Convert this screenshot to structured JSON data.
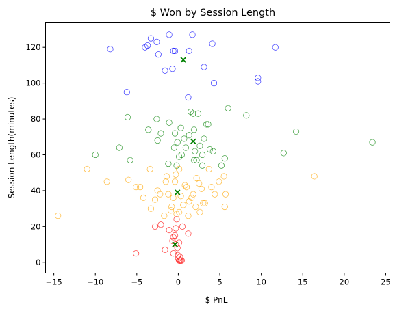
{
  "chart_data": {
    "type": "scatter",
    "title": "$ Won by Session Length",
    "xlabel": "$ PnL",
    "ylabel": "Session Length(minutes)",
    "xlim": [
      -16,
      25.5
    ],
    "ylim": [
      -6,
      134
    ],
    "xticks": [
      -15,
      -10,
      -5,
      0,
      5,
      10,
      15,
      20,
      25
    ],
    "yticks": [
      0,
      20,
      40,
      60,
      80,
      100,
      120
    ],
    "grid": false,
    "legend": "none",
    "series": [
      {
        "color": "#0000ff",
        "marker": "open-circle",
        "points": [
          [
            -8.2,
            119
          ],
          [
            -4,
            120
          ],
          [
            -3.7,
            121
          ],
          [
            -3.3,
            125
          ],
          [
            -2.6,
            123
          ],
          [
            -1.1,
            127
          ],
          [
            1.7,
            127
          ],
          [
            -2.4,
            116
          ],
          [
            -1.6,
            107
          ],
          [
            -0.7,
            108
          ],
          [
            -0.4,
            118
          ],
          [
            -0.6,
            118
          ],
          [
            1.3,
            118
          ],
          [
            3.1,
            109
          ],
          [
            4.1,
            122
          ],
          [
            4.3,
            100
          ],
          [
            1.2,
            92
          ],
          [
            -6.2,
            95
          ],
          [
            9.6,
            101
          ],
          [
            9.6,
            103
          ],
          [
            11.7,
            120
          ]
        ]
      },
      {
        "color": "#008000",
        "marker": "open-circle",
        "points": [
          [
            -10,
            60
          ],
          [
            -6.1,
            81
          ],
          [
            -5.8,
            57
          ],
          [
            -7.1,
            64
          ],
          [
            -3.6,
            74
          ],
          [
            -2.6,
            80
          ],
          [
            -2.5,
            68
          ],
          [
            -2.1,
            72
          ],
          [
            -1.1,
            78
          ],
          [
            -1.2,
            55
          ],
          [
            -0.5,
            64
          ],
          [
            -0.4,
            72
          ],
          [
            -0.1,
            67
          ],
          [
            -0.2,
            54
          ],
          [
            0.1,
            59
          ],
          [
            0.3,
            75
          ],
          [
            0.4,
            60
          ],
          [
            0.7,
            69
          ],
          [
            0.9,
            64
          ],
          [
            1.3,
            71
          ],
          [
            1.5,
            84
          ],
          [
            1.8,
            83
          ],
          [
            1.9,
            74
          ],
          [
            2.0,
            62
          ],
          [
            2.2,
            57
          ],
          [
            2.4,
            83
          ],
          [
            2.6,
            65
          ],
          [
            1.9,
            57
          ],
          [
            2.9,
            54
          ],
          [
            2.9,
            60
          ],
          [
            3.1,
            69
          ],
          [
            3.4,
            77
          ],
          [
            3.6,
            77
          ],
          [
            3.8,
            63
          ],
          [
            4.2,
            62
          ],
          [
            5.2,
            54
          ],
          [
            5.6,
            58
          ],
          [
            6.0,
            86
          ],
          [
            8.2,
            82
          ],
          [
            12.7,
            61
          ],
          [
            14.2,
            73
          ],
          [
            23.4,
            67
          ]
        ]
      },
      {
        "color": "#ffa500",
        "marker": "open-circle",
        "points": [
          [
            -14.5,
            26
          ],
          [
            -11,
            52
          ],
          [
            -8.6,
            45
          ],
          [
            -6,
            46
          ],
          [
            -5.1,
            42
          ],
          [
            -4.6,
            42
          ],
          [
            -4.2,
            36
          ],
          [
            -3.3,
            30
          ],
          [
            -3.4,
            52
          ],
          [
            -2.8,
            35
          ],
          [
            -2.5,
            40
          ],
          [
            -2.2,
            38
          ],
          [
            -1.7,
            26
          ],
          [
            -1.5,
            45
          ],
          [
            -1.4,
            48
          ],
          [
            -1.2,
            38
          ],
          [
            -0.9,
            29
          ],
          [
            -0.8,
            31
          ],
          [
            -0.6,
            36
          ],
          [
            -0.4,
            45
          ],
          [
            -0.2,
            27
          ],
          [
            0.1,
            28
          ],
          [
            -0.3,
            49
          ],
          [
            0.1,
            52
          ],
          [
            0.3,
            37
          ],
          [
            0.6,
            32
          ],
          [
            0.8,
            43
          ],
          [
            1.0,
            42
          ],
          [
            1.2,
            26
          ],
          [
            1.3,
            34
          ],
          [
            1.6,
            36
          ],
          [
            1.8,
            38
          ],
          [
            2.1,
            31
          ],
          [
            2.2,
            47
          ],
          [
            2.5,
            44
          ],
          [
            2.6,
            28
          ],
          [
            2.8,
            41
          ],
          [
            3.0,
            33
          ],
          [
            3.2,
            33
          ],
          [
            3.7,
            52
          ],
          [
            4.0,
            42
          ],
          [
            4.4,
            38
          ],
          [
            4.9,
            45
          ],
          [
            5.5,
            48
          ],
          [
            5.6,
            31
          ],
          [
            5.7,
            38
          ],
          [
            16.4,
            48
          ]
        ]
      },
      {
        "color": "#ff0000",
        "marker": "open-circle",
        "points": [
          [
            -5.1,
            5
          ],
          [
            -2.8,
            20
          ],
          [
            -2.1,
            21
          ],
          [
            -1.6,
            7
          ],
          [
            -1.1,
            18
          ],
          [
            -0.7,
            12
          ],
          [
            -0.6,
            5
          ],
          [
            -0.4,
            15
          ],
          [
            -0.3,
            19
          ],
          [
            -0.2,
            24
          ],
          [
            -0.1,
            8
          ],
          [
            -0.05,
            4
          ],
          [
            0.0,
            2
          ],
          [
            0.1,
            1
          ],
          [
            0.2,
            1
          ],
          [
            0.3,
            1
          ],
          [
            0.4,
            1
          ],
          [
            0.2,
            3
          ],
          [
            -0.3,
            10
          ],
          [
            0.1,
            11
          ],
          [
            0.5,
            20
          ],
          [
            1.2,
            16
          ],
          [
            -0.6,
            14
          ]
        ]
      },
      {
        "color": "#008000",
        "marker": "x",
        "points": [
          [
            0.6,
            113
          ],
          [
            1.8,
            67.5
          ],
          [
            -0.1,
            39
          ],
          [
            -0.4,
            10
          ]
        ]
      }
    ]
  }
}
